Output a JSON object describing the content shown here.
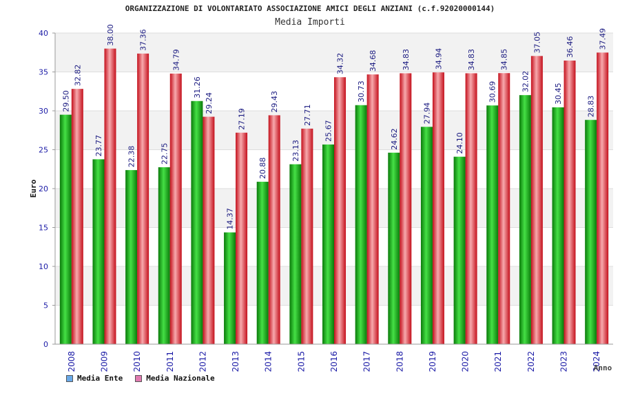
{
  "chart_data": {
    "type": "bar",
    "title": "ORGANIZZAZIONE DI VOLONTARIATO ASSOCIAZIONE AMICI DEGLI ANZIANI (c.f.92020000144)",
    "subtitle": "Media Importi",
    "xlabel": "Anno",
    "ylabel": "Euro",
    "ylim": [
      0,
      40
    ],
    "yticks": [
      0,
      5,
      10,
      15,
      20,
      25,
      30,
      35,
      40
    ],
    "grid": true,
    "legend_position": "bottom-left",
    "categories": [
      "2008",
      "2009",
      "2010",
      "2011",
      "2012",
      "2013",
      "2014",
      "2015",
      "2016",
      "2017",
      "2018",
      "2019",
      "2020",
      "2021",
      "2022",
      "2023",
      "2024"
    ],
    "series": [
      {
        "name": "Media Ente",
        "color": "#1db31d",
        "legend_color": "#6aa9e8",
        "values": [
          29.5,
          23.77,
          22.38,
          22.75,
          31.26,
          14.37,
          20.88,
          23.13,
          25.67,
          30.73,
          24.62,
          27.94,
          24.1,
          30.69,
          32.02,
          30.45,
          28.83
        ],
        "labels": [
          "29.50",
          "23.77",
          "22.38",
          "22.75",
          "31.26",
          "14.37",
          "20.88",
          "23.13",
          "25.67",
          "30.73",
          "24.62",
          "27.94",
          "24.10",
          "30.69",
          "32.02",
          "30.45",
          "28.83"
        ]
      },
      {
        "name": "Media Nazionale",
        "color": "#e8323c",
        "legend_color": "#e07ab0",
        "values": [
          32.82,
          38.0,
          37.36,
          34.79,
          29.24,
          27.19,
          29.43,
          27.71,
          34.32,
          34.68,
          34.83,
          34.94,
          34.83,
          34.85,
          37.05,
          36.46,
          37.49
        ],
        "labels": [
          "32.82",
          "38.00",
          "37.36",
          "34.79",
          "29.24",
          "27.19",
          "29.43",
          "27.71",
          "34.32",
          "34.68",
          "34.83",
          "34.94",
          "34.83",
          "34.85",
          "37.05",
          "36.46",
          "37.49"
        ]
      }
    ]
  }
}
